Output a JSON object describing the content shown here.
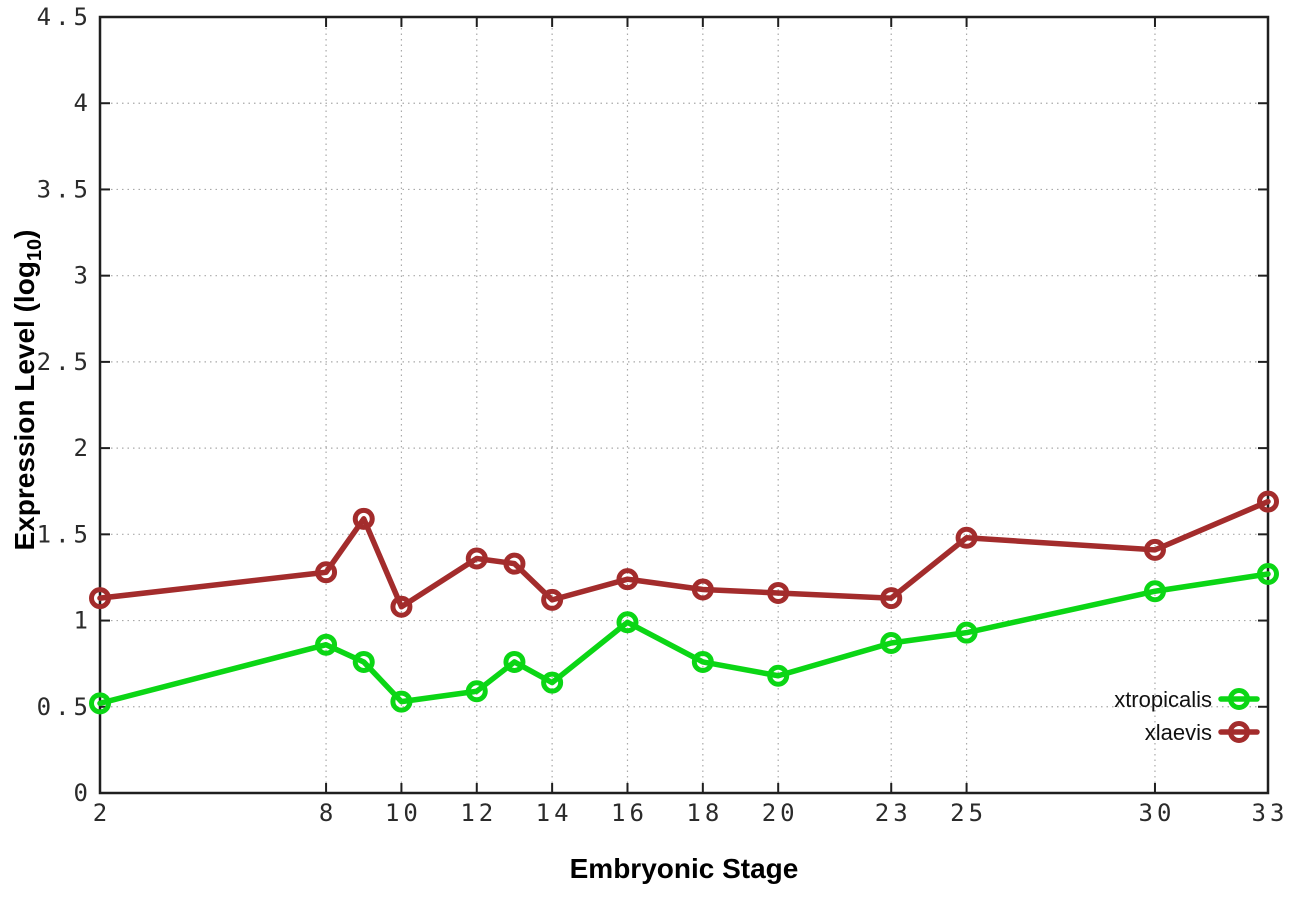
{
  "chart_data": {
    "type": "line",
    "x": [
      2,
      8,
      9,
      10,
      12,
      13,
      14,
      16,
      18,
      20,
      23,
      25,
      30,
      33
    ],
    "series": [
      {
        "name": "xtropicalis",
        "color": "#0bd615",
        "marker": "open-circle",
        "values": [
          0.52,
          0.86,
          0.76,
          0.53,
          0.59,
          0.76,
          0.64,
          0.99,
          0.76,
          0.68,
          0.87,
          0.93,
          1.17,
          1.27
        ]
      },
      {
        "name": "xlaevis",
        "color": "#a32c2c",
        "marker": "open-circle",
        "values": [
          1.13,
          1.28,
          1.59,
          1.08,
          1.36,
          1.33,
          1.12,
          1.24,
          1.18,
          1.16,
          1.13,
          1.48,
          1.41,
          1.69
        ]
      }
    ],
    "xlabel": "Embryonic Stage",
    "ylabel": {
      "text": "Expression Level (log",
      "subscript": "10",
      "suffix": ")"
    },
    "xlim": [
      2,
      33
    ],
    "ylim": [
      0,
      4.5
    ],
    "xticks": [
      2,
      8,
      10,
      12,
      14,
      16,
      18,
      20,
      23,
      25,
      30,
      33
    ],
    "xtick_labels": [
      "2",
      "8",
      "10",
      "12",
      "14",
      "16",
      "18",
      "20",
      "23",
      "25",
      "30",
      "33"
    ],
    "yticks": [
      0,
      0.5,
      1,
      1.5,
      2,
      2.5,
      3,
      3.5,
      4,
      4.5
    ],
    "ytick_labels": [
      "0",
      "0.5",
      "1",
      "1.5",
      "2",
      "2.5",
      "3",
      "3.5",
      "4",
      "4.5"
    ],
    "grid": true,
    "grid_style": "dotted",
    "legend_position": "inside-bottom-right"
  },
  "styles": {
    "background": "#ffffff",
    "border_color": "#1f1f1f",
    "grid_color": "#a9a9a9",
    "tick_color": "#1f1f1f",
    "tick_label_color": "#2b2b2b",
    "axis_title_color": "#000000"
  }
}
